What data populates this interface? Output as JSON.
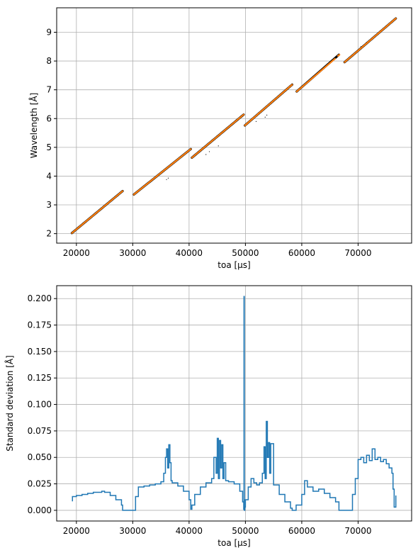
{
  "chart_data": [
    {
      "type": "scatter",
      "title": "",
      "xlabel": "toa [µs]",
      "ylabel": "Wavelength [Å]",
      "xlim": [
        16500,
        79500
      ],
      "ylim": [
        1.67,
        9.85
      ],
      "x_ticks": [
        20000,
        30000,
        40000,
        50000,
        60000,
        70000
      ],
      "y_ticks": [
        2,
        3,
        4,
        5,
        6,
        7,
        8,
        9
      ],
      "grid": true,
      "legend": "none",
      "series": [
        {
          "role": "events",
          "color": "#000000",
          "marker": "tiny dots",
          "segments": [
            {
              "x": [
                19200,
                28200
              ],
              "y": [
                2.02,
                3.48
              ]
            },
            {
              "x": [
                30200,
                40300
              ],
              "y": [
                3.36,
                4.94
              ]
            },
            {
              "x": [
                40500,
                49700
              ],
              "y": [
                4.64,
                6.14
              ]
            },
            {
              "x": [
                49900,
                58300
              ],
              "y": [
                5.76,
                7.18
              ]
            },
            {
              "x": [
                59100,
                66600
              ],
              "y": [
                6.94,
                8.22
              ]
            },
            {
              "x": [
                67600,
                76700
              ],
              "y": [
                7.96,
                9.48
              ]
            }
          ],
          "outliers": [
            {
              "x": 36000,
              "y": 3.88
            },
            {
              "x": 36300,
              "y": 3.93
            },
            {
              "x": 43000,
              "y": 4.75
            },
            {
              "x": 43600,
              "y": 4.85
            },
            {
              "x": 45200,
              "y": 5.05
            },
            {
              "x": 51900,
              "y": 5.9
            },
            {
              "x": 53500,
              "y": 6.05
            },
            {
              "x": 53800,
              "y": 6.12
            },
            {
              "x": 70500,
              "y": 8.5
            },
            {
              "x": 71500,
              "y": 8.65
            },
            {
              "x": 72500,
              "y": 8.8
            }
          ]
        },
        {
          "role": "mean",
          "color": "#ff7f0e",
          "marker": "line",
          "segments": [
            {
              "x": [
                19200,
                28200
              ],
              "y": [
                2.02,
                3.48
              ]
            },
            {
              "x": [
                30200,
                40300
              ],
              "y": [
                3.36,
                4.94
              ]
            },
            {
              "x": [
                40500,
                49700
              ],
              "y": [
                4.64,
                6.14
              ]
            },
            {
              "x": [
                49900,
                58300
              ],
              "y": [
                5.76,
                7.18
              ]
            },
            {
              "x": [
                59100,
                65900
              ],
              "y": [
                6.94,
                8.08
              ]
            },
            {
              "x": [
                66400,
                66700
              ],
              "y": [
                8.18,
                8.22
              ]
            },
            {
              "x": [
                67600,
                76700
              ],
              "y": [
                7.96,
                9.48
              ]
            }
          ]
        }
      ]
    },
    {
      "type": "line",
      "title": "",
      "xlabel": "toa [µs]",
      "ylabel": "Standard deviation [Å]",
      "xlim": [
        16500,
        79500
      ],
      "ylim": [
        -0.0101,
        0.2122
      ],
      "x_ticks": [
        20000,
        30000,
        40000,
        50000,
        60000,
        70000
      ],
      "y_ticks": [
        0.0,
        0.025,
        0.05,
        0.075,
        0.1,
        0.125,
        0.15,
        0.175,
        0.2
      ],
      "y_tick_labels": [
        "0.000",
        "0.025",
        "0.050",
        "0.075",
        "0.100",
        "0.125",
        "0.150",
        "0.175",
        "0.200"
      ],
      "grid": true,
      "legend": "none",
      "series": [
        {
          "color": "#1f77b4",
          "x": [
            19200,
            19300,
            19600,
            20000,
            21000,
            22000,
            23000,
            24000,
            24500,
            25000,
            26000,
            27000,
            28000,
            28200,
            29000,
            30000,
            30500,
            31000,
            32000,
            33000,
            34000,
            35000,
            35500,
            35800,
            36000,
            36200,
            36400,
            36600,
            36800,
            37000,
            38000,
            39000,
            40000,
            40300,
            40500,
            41000,
            42000,
            43000,
            44000,
            44400,
            44800,
            45000,
            45200,
            45400,
            45600,
            45800,
            46000,
            46200,
            46500,
            47000,
            48000,
            49000,
            49500,
            49700,
            49750,
            49800,
            49900,
            50000,
            50500,
            51000,
            51500,
            52000,
            52500,
            53000,
            53300,
            53500,
            53700,
            53900,
            54100,
            54300,
            54500,
            55000,
            56000,
            57000,
            58000,
            58300,
            59000,
            60000,
            60500,
            61000,
            62000,
            63000,
            64000,
            65000,
            66000,
            66600,
            67600,
            68500,
            69000,
            69500,
            70000,
            70500,
            71000,
            71500,
            72000,
            72500,
            73000,
            73500,
            74000,
            74500,
            75000,
            75500,
            76000,
            76200,
            76400,
            76700
          ],
          "y": [
            0.009,
            0.013,
            0.013,
            0.014,
            0.015,
            0.016,
            0.017,
            0.017,
            0.018,
            0.017,
            0.014,
            0.01,
            0.005,
            0.0,
            0.0,
            0.0,
            0.013,
            0.022,
            0.023,
            0.024,
            0.025,
            0.027,
            0.035,
            0.05,
            0.058,
            0.04,
            0.062,
            0.045,
            0.028,
            0.026,
            0.023,
            0.018,
            0.01,
            0.001,
            0.005,
            0.015,
            0.022,
            0.026,
            0.03,
            0.05,
            0.035,
            0.068,
            0.03,
            0.066,
            0.04,
            0.062,
            0.03,
            0.045,
            0.028,
            0.027,
            0.025,
            0.018,
            0.008,
            0.001,
            0.202,
            0.0,
            0.003,
            0.01,
            0.022,
            0.03,
            0.026,
            0.024,
            0.026,
            0.035,
            0.06,
            0.03,
            0.084,
            0.05,
            0.064,
            0.035,
            0.063,
            0.024,
            0.015,
            0.008,
            0.002,
            0.0,
            0.005,
            0.015,
            0.028,
            0.022,
            0.018,
            0.02,
            0.016,
            0.012,
            0.008,
            0.0,
            0.0,
            0.0,
            0.015,
            0.03,
            0.048,
            0.05,
            0.045,
            0.052,
            0.047,
            0.058,
            0.048,
            0.05,
            0.046,
            0.048,
            0.044,
            0.04,
            0.035,
            0.02,
            0.003,
            0.014
          ]
        }
      ]
    }
  ]
}
